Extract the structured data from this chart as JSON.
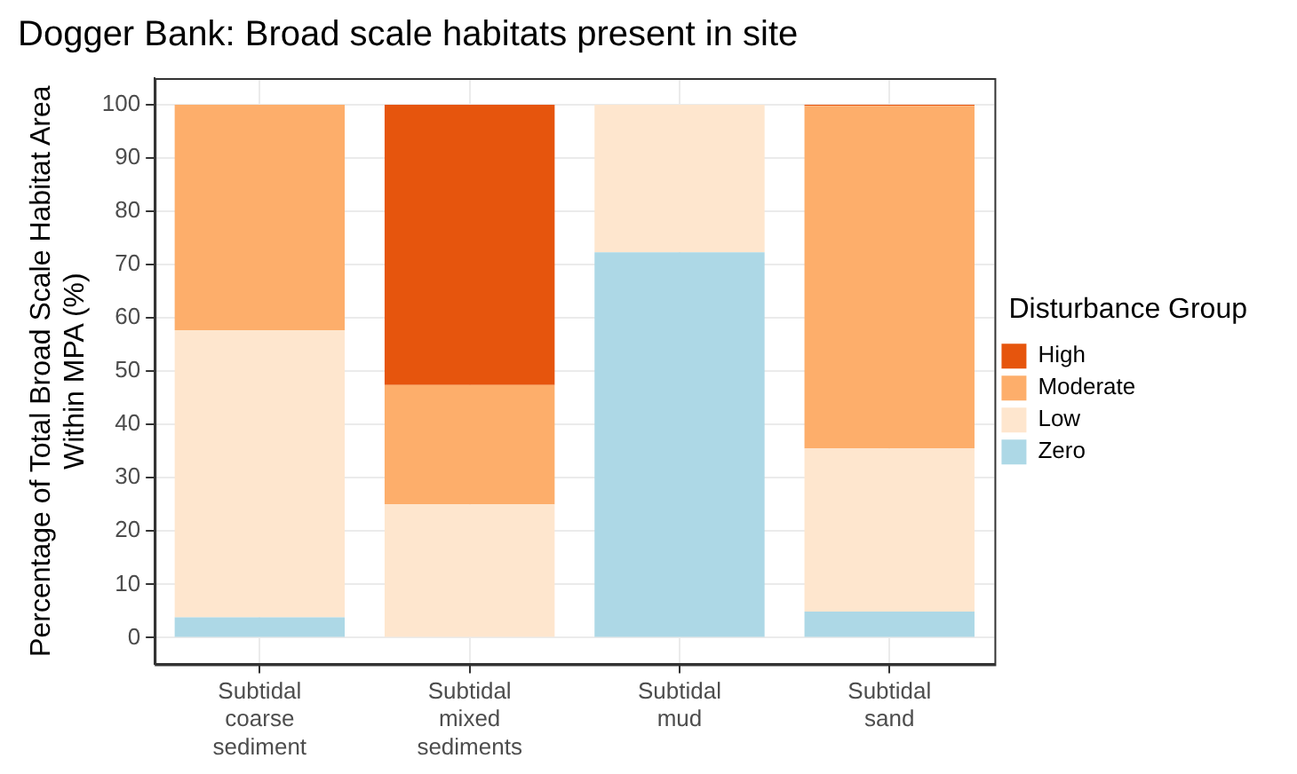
{
  "chart_data": {
    "type": "bar",
    "stacked": true,
    "title": "Dogger Bank: Broad scale habitats present in site",
    "ylabel": "Percentage of Total Broad Scale Habitat Area\nWithin MPA (%)",
    "legend_title": "Disturbance Group",
    "legend": "right",
    "grid": true,
    "categories": [
      "Subtidal coarse sediment",
      "Subtidal mixed sediments",
      "Subtidal mud",
      "Subtidal sand"
    ],
    "ylim": [
      -5,
      105
    ],
    "yticks": [
      0,
      10,
      20,
      30,
      40,
      50,
      60,
      70,
      80,
      90,
      100
    ],
    "series": [
      {
        "name": "Zero",
        "color": "#add8e6",
        "values": [
          3.8,
          0,
          72.3,
          4.9
        ]
      },
      {
        "name": "Low",
        "color": "#fee6ce",
        "values": [
          53.9,
          25.0,
          27.7,
          30.6
        ]
      },
      {
        "name": "Moderate",
        "color": "#fdae6b",
        "values": [
          42.3,
          22.4,
          0,
          64.3
        ]
      },
      {
        "name": "High",
        "color": "#e6550d",
        "values": [
          0,
          52.6,
          0,
          0.2
        ]
      }
    ]
  }
}
